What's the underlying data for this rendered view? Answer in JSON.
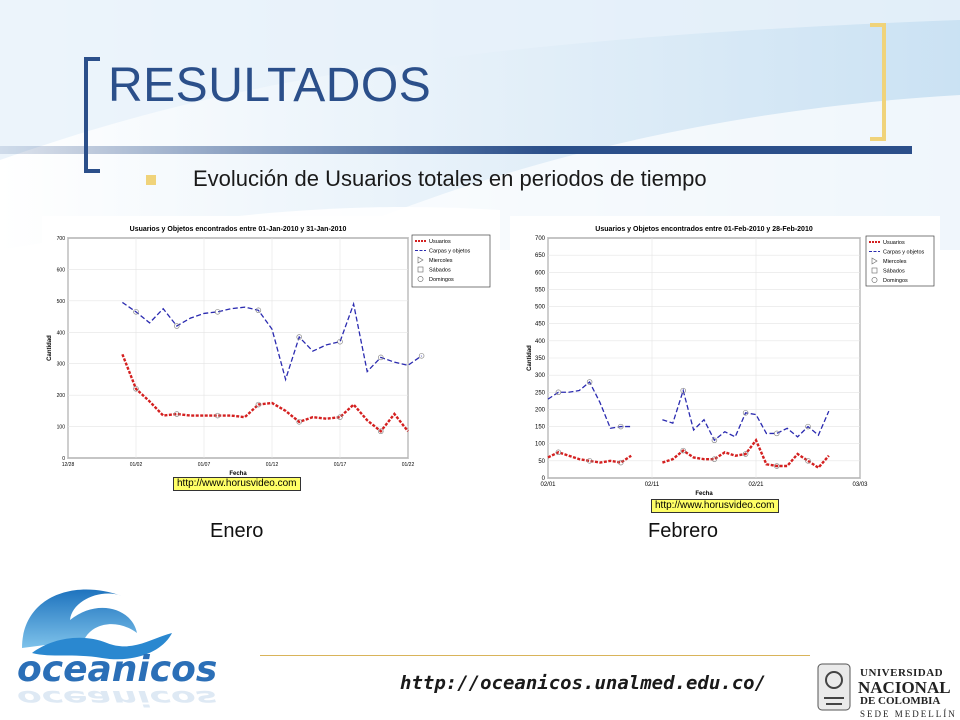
{
  "slide": {
    "title": "RESULTADOS",
    "bullet": "Evolución de Usuarios totales en periodos de tiempo",
    "footer_url": "http://oceanicos.unalmed.edu.co/",
    "logo_text": "oceanicos",
    "university": {
      "line1": "UNIVERSIDAD",
      "line2": "NACIONAL",
      "line3": "DE COLOMBIA",
      "line4": "SEDE MEDELLÍN"
    },
    "colors": {
      "title": "#2b4f8a",
      "accent": "#f0d37a",
      "usuarios": "#d42020",
      "carpetas": "#2b2bb0"
    }
  },
  "chart_data": [
    {
      "type": "line",
      "title": "Usuarios y Objetos encontrados entre 01-Jan-2010 y 31-Jan-2010",
      "xlabel": "Fecha",
      "ylabel": "Cantidad",
      "ylim": [
        0,
        700
      ],
      "yticks": [
        "0",
        "100",
        "200",
        "300",
        "400",
        "500",
        "600",
        "700"
      ],
      "xlim": [
        0,
        25
      ],
      "xticks": [
        {
          "pos": 0,
          "label": "12/28"
        },
        {
          "pos": 5,
          "label": "01/02"
        },
        {
          "pos": 10,
          "label": "01/07"
        },
        {
          "pos": 15,
          "label": "01/12"
        },
        {
          "pos": 20,
          "label": "01/17"
        },
        {
          "pos": 25,
          "label": "01/22"
        }
      ],
      "caption": "Enero",
      "source": "http://www.horusvideo.com",
      "legend": [
        "Usuarios",
        "Carpas y objetos",
        "Miercoles",
        "Sábados",
        "Domingos"
      ],
      "series": [
        {
          "name": "Usuarios",
          "x": [
            4,
            5,
            6,
            7,
            8,
            9,
            10,
            11,
            12,
            13,
            14,
            15,
            16,
            17,
            18,
            19,
            20,
            21,
            22,
            23,
            24,
            25
          ],
          "values": [
            330,
            220,
            180,
            135,
            140,
            135,
            135,
            135,
            135,
            130,
            170,
            175,
            150,
            115,
            130,
            125,
            130,
            170,
            120,
            85,
            140,
            85
          ]
        },
        {
          "name": "Carpas y objetos",
          "x": [
            4,
            5,
            6,
            7,
            8,
            9,
            10,
            11,
            12,
            13,
            14,
            15,
            16,
            17,
            18,
            19,
            20,
            21,
            22,
            23,
            24,
            25,
            26
          ],
          "values": [
            495,
            465,
            430,
            475,
            420,
            445,
            460,
            465,
            475,
            480,
            470,
            410,
            250,
            385,
            340,
            360,
            370,
            490,
            275,
            320,
            305,
            295,
            325
          ]
        }
      ]
    },
    {
      "type": "line",
      "title": "Usuarios y Objetos encontrados entre 01-Feb-2010 y 28-Feb-2010",
      "xlabel": "Fecha",
      "ylabel": "Cantidad",
      "ylim": [
        0,
        700
      ],
      "yticks": [
        "0",
        "50",
        "100",
        "150",
        "200",
        "250",
        "300",
        "350",
        "400",
        "450",
        "500",
        "550",
        "600",
        "650",
        "700"
      ],
      "xlim": [
        0,
        30
      ],
      "xticks": [
        {
          "pos": 0,
          "label": "02/01"
        },
        {
          "pos": 10,
          "label": "02/11"
        },
        {
          "pos": 20,
          "label": "02/21"
        },
        {
          "pos": 30,
          "label": "03/03"
        }
      ],
      "caption": "Febrero",
      "source": "http://www.horusvideo.com",
      "legend": [
        "Usuarios",
        "Carpas y objetos",
        "Miercoles",
        "Sábados",
        "Domingos"
      ],
      "series": [
        {
          "name": "Usuarios",
          "x": [
            0,
            1,
            2,
            3,
            4,
            5,
            6,
            7,
            8,
            9,
            10,
            11,
            12,
            13,
            14,
            15,
            16,
            17,
            18,
            19,
            20,
            21,
            22,
            23,
            24,
            25,
            26,
            27
          ],
          "values": [
            60,
            75,
            65,
            55,
            50,
            45,
            50,
            45,
            65,
            null,
            null,
            45,
            55,
            80,
            60,
            55,
            55,
            75,
            65,
            70,
            110,
            40,
            35,
            35,
            70,
            50,
            30,
            65
          ]
        },
        {
          "name": "Carpas y objetos",
          "x": [
            0,
            1,
            2,
            3,
            4,
            5,
            6,
            7,
            8,
            9,
            10,
            11,
            12,
            13,
            14,
            15,
            16,
            17,
            18,
            19,
            20,
            21,
            22,
            23,
            24,
            25,
            26,
            27
          ],
          "values": [
            230,
            250,
            250,
            255,
            280,
            220,
            145,
            150,
            150,
            null,
            null,
            170,
            160,
            255,
            140,
            170,
            110,
            135,
            120,
            190,
            185,
            130,
            130,
            145,
            120,
            150,
            125,
            195
          ]
        }
      ]
    }
  ]
}
